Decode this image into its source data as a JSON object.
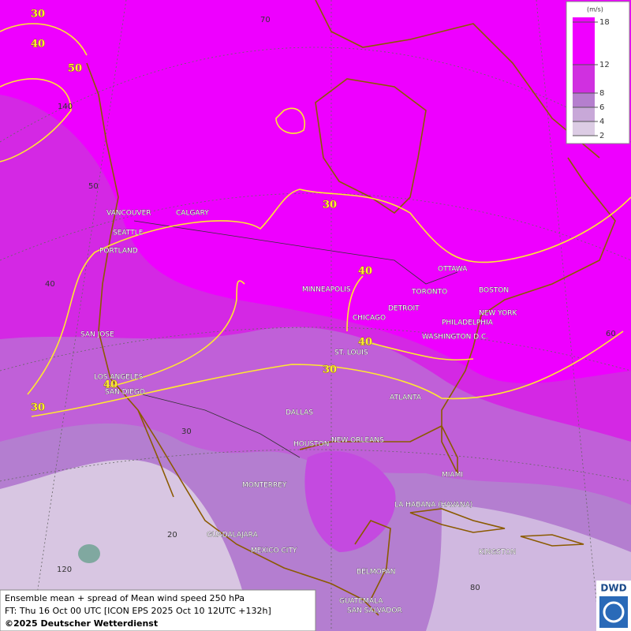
{
  "legend": {
    "unit": "(m/s)",
    "levels": [
      2,
      4,
      6,
      8,
      12,
      18
    ],
    "colors": [
      "#dcccE4",
      "#c8a8d8",
      "#b57fce",
      "#d030e0",
      "#f000ff"
    ]
  },
  "contour_labels": [
    30,
    40,
    50,
    30,
    40,
    40,
    30,
    40,
    30
  ],
  "graticule_labels": [
    "70",
    "140",
    "50",
    "40",
    "60",
    "30",
    "20",
    "120",
    "80"
  ],
  "cities": [
    "VANCOUVER",
    "CALGARY",
    "SEATTLE",
    "PORTLAND",
    "MINNEAPOLIS",
    "OTTAWA",
    "TORONTO",
    "BOSTON",
    "DETROIT",
    "NEW YORK",
    "PHILADELPHIA",
    "CHICAGO",
    "WASHINGTON D.C.",
    "ST. LOUIS",
    "SAN JOSE",
    "LOS ANGELES",
    "SAN DIEGO",
    "ATLANTA",
    "DALLAS",
    "HOUSTON",
    "NEW ORLEANS",
    "MIAMI",
    "MONTERREY",
    "LA HABANA (HAVANA)",
    "GUADALAJARA",
    "MEXICO CITY",
    "KINGSTON",
    "BELMOPAN",
    "GUATEMALA",
    "SAN SALVADOR"
  ],
  "footer": {
    "line1": "Ensemble mean + spread of Mean wind speed 250 hPa",
    "line2": "FT: Thu 16 Oct 00 UTC [ICON EPS 2025 Oct 10 12UTC +132h]",
    "line3": "©2025 Deutscher Wetterdienst"
  },
  "logo": "DWD"
}
